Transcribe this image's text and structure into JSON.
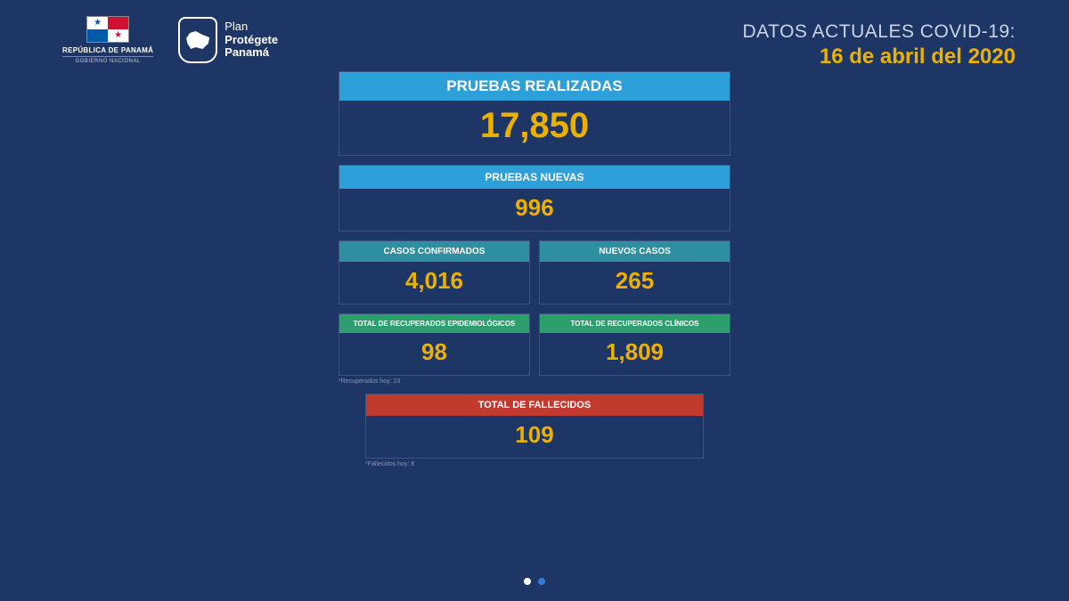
{
  "header": {
    "gov_line1": "REPÚBLICA DE PANAMÁ",
    "gov_line2": "GOBIERNO NACIONAL",
    "plan_line1": "Plan",
    "plan_line2": "Protégete",
    "plan_line3": "Panamá",
    "title": "DATOS ACTUALES COVID-19:",
    "date": "16 de abril del 2020"
  },
  "colors": {
    "background": "#1e3666",
    "accent_yellow": "#ecb100",
    "header_blue": "#2d9fd9",
    "header_teal": "#2d8f9f",
    "header_green": "#2d9f6f",
    "header_red": "#c23a2d",
    "text_white": "#ffffff",
    "flag_red": "#d21034",
    "flag_blue": "#005aa7"
  },
  "cards": {
    "tests_total": {
      "label": "PRUEBAS REALIZADAS",
      "value": "17,850",
      "header_color": "#2d9fd9",
      "label_fs": 17,
      "value_fs": 40
    },
    "tests_new": {
      "label": "PRUEBAS NUEVAS",
      "value": "996",
      "header_color": "#2d9fd9",
      "label_fs": 12,
      "value_fs": 26
    },
    "confirmed": {
      "label": "CASOS CONFIRMADOS",
      "value": "4,016",
      "header_color": "#2d8f9f",
      "label_fs": 10,
      "value_fs": 26
    },
    "new_cases": {
      "label": "NUEVOS CASOS",
      "value": "265",
      "header_color": "#2d8f9f",
      "label_fs": 10,
      "value_fs": 26
    },
    "recov_epi": {
      "label": "TOTAL DE RECUPERADOS EPIDEMIOLÓGICOS",
      "value": "98",
      "header_color": "#2d9f6f",
      "label_fs": 8,
      "value_fs": 26,
      "footnote": "*Recuperados hoy: 23"
    },
    "recov_clin": {
      "label": "TOTAL DE RECUPERADOS CLÍNICOS",
      "value": "1,809",
      "header_color": "#2d9f6f",
      "label_fs": 8,
      "value_fs": 26
    },
    "deaths": {
      "label": "TOTAL DE FALLECIDOS",
      "value": "109",
      "header_color": "#c23a2d",
      "label_fs": 11,
      "value_fs": 26,
      "footnote": "*Fallecidos hoy: 8"
    }
  },
  "pagination": {
    "total": 2,
    "active_index": 0
  }
}
